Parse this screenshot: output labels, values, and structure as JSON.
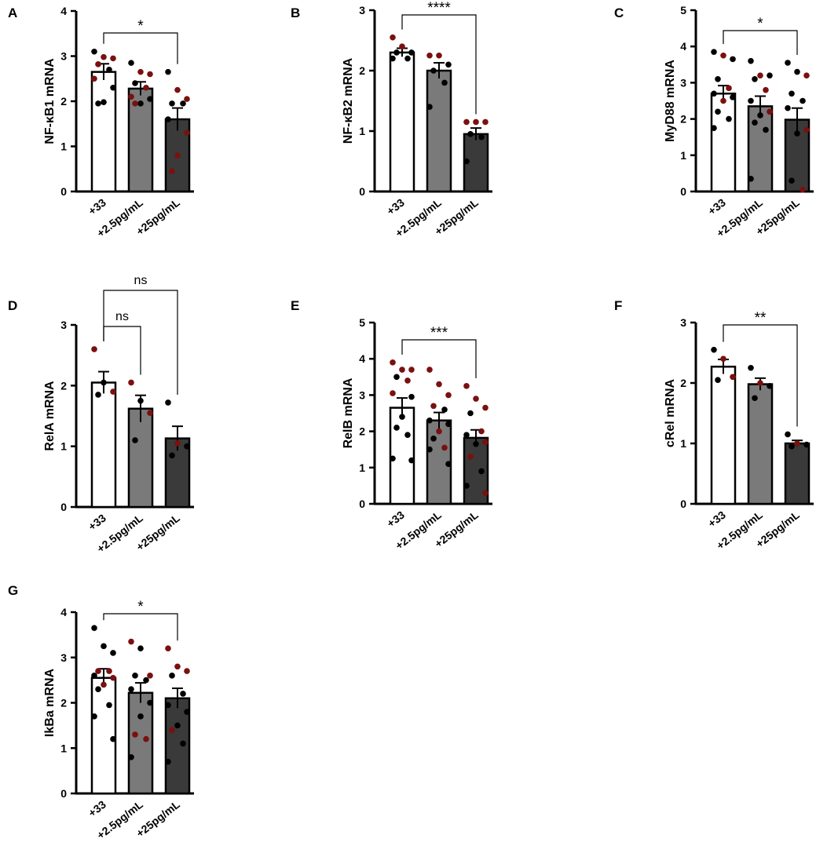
{
  "figure": {
    "colors": {
      "bar_fills": [
        "#ffffff",
        "#7a7a7a",
        "#3a3a3a"
      ],
      "dot_black": "#000000",
      "dot_red": "#7a1010",
      "axis": "#000000"
    }
  },
  "chart_data": [
    {
      "panel": "A",
      "type": "bar",
      "ylabel": "NF-κB1 mRNA",
      "ylim": [
        0,
        4
      ],
      "yticks": [
        0,
        1,
        2,
        3,
        4
      ],
      "categories": [
        "+33",
        "+2.5pg/mL",
        "+25pg/mL"
      ],
      "values": [
        2.65,
        2.28,
        1.6
      ],
      "errors": [
        0.18,
        0.15,
        0.25
      ],
      "points": [
        [
          {
            "v": 3.1,
            "c": "k"
          },
          {
            "v": 2.98,
            "c": "r"
          },
          {
            "v": 2.95,
            "c": "r"
          },
          {
            "v": 2.82,
            "c": "r"
          },
          {
            "v": 2.7,
            "c": "k"
          },
          {
            "v": 2.5,
            "c": "r"
          },
          {
            "v": 2.3,
            "c": "k"
          },
          {
            "v": 1.98,
            "c": "k"
          },
          {
            "v": 1.95,
            "c": "k"
          }
        ],
        [
          {
            "v": 2.85,
            "c": "k"
          },
          {
            "v": 2.65,
            "c": "r"
          },
          {
            "v": 2.6,
            "c": "r"
          },
          {
            "v": 2.4,
            "c": "k"
          },
          {
            "v": 2.3,
            "c": "r"
          },
          {
            "v": 2.1,
            "c": "r"
          },
          {
            "v": 2.05,
            "c": "k"
          },
          {
            "v": 1.95,
            "c": "k"
          },
          {
            "v": 1.95,
            "c": "r"
          }
        ],
        [
          {
            "v": 2.65,
            "c": "k"
          },
          {
            "v": 2.25,
            "c": "r"
          },
          {
            "v": 2.05,
            "c": "r"
          },
          {
            "v": 1.95,
            "c": "k"
          },
          {
            "v": 1.95,
            "c": "k"
          },
          {
            "v": 1.6,
            "c": "k"
          },
          {
            "v": 1.3,
            "c": "r"
          },
          {
            "v": 0.8,
            "c": "r"
          },
          {
            "v": 0.45,
            "c": "r"
          }
        ]
      ],
      "significance": [
        {
          "from": 0,
          "to": 2,
          "label": "*"
        }
      ]
    },
    {
      "panel": "B",
      "type": "bar",
      "ylabel": "NF-κB2 mRNA",
      "ylim": [
        0,
        3
      ],
      "yticks": [
        0,
        1,
        2,
        3
      ],
      "categories": [
        "+33",
        "+2.5pg/mL",
        "+25pg/mL"
      ],
      "values": [
        2.3,
        2.0,
        0.95
      ],
      "errors": [
        0.07,
        0.13,
        0.1
      ],
      "points": [
        [
          {
            "v": 2.55,
            "c": "r"
          },
          {
            "v": 2.4,
            "c": "r"
          },
          {
            "v": 2.3,
            "c": "k"
          },
          {
            "v": 2.3,
            "c": "k"
          },
          {
            "v": 2.2,
            "c": "k"
          },
          {
            "v": 2.2,
            "c": "k"
          }
        ],
        [
          {
            "v": 2.25,
            "c": "r"
          },
          {
            "v": 2.25,
            "c": "r"
          },
          {
            "v": 2.1,
            "c": "k"
          },
          {
            "v": 2.0,
            "c": "k"
          },
          {
            "v": 1.8,
            "c": "k"
          },
          {
            "v": 1.4,
            "c": "k"
          }
        ],
        [
          {
            "v": 1.15,
            "c": "r"
          },
          {
            "v": 1.15,
            "c": "r"
          },
          {
            "v": 1.15,
            "c": "r"
          },
          {
            "v": 0.95,
            "c": "k"
          },
          {
            "v": 0.9,
            "c": "k"
          },
          {
            "v": 0.5,
            "c": "k"
          }
        ]
      ],
      "significance": [
        {
          "from": 0,
          "to": 2,
          "label": "****"
        }
      ]
    },
    {
      "panel": "C",
      "type": "bar",
      "ylabel": "MyD88 mRNA",
      "ylim": [
        0,
        5
      ],
      "yticks": [
        0,
        1,
        2,
        3,
        4,
        5
      ],
      "categories": [
        "+33",
        "+2.5pg/mL",
        "+25pg/mL"
      ],
      "values": [
        2.7,
        2.35,
        1.98
      ],
      "errors": [
        0.22,
        0.28,
        0.32
      ],
      "points": [
        [
          {
            "v": 3.85,
            "c": "k"
          },
          {
            "v": 3.75,
            "c": "r"
          },
          {
            "v": 3.65,
            "c": "k"
          },
          {
            "v": 3.1,
            "c": "k"
          },
          {
            "v": 2.85,
            "c": "r"
          },
          {
            "v": 2.7,
            "c": "k"
          },
          {
            "v": 2.6,
            "c": "k"
          },
          {
            "v": 2.5,
            "c": "r"
          },
          {
            "v": 2.2,
            "c": "k"
          },
          {
            "v": 2.0,
            "c": "k"
          },
          {
            "v": 1.75,
            "c": "k"
          }
        ],
        [
          {
            "v": 3.6,
            "c": "k"
          },
          {
            "v": 3.2,
            "c": "r"
          },
          {
            "v": 3.2,
            "c": "k"
          },
          {
            "v": 3.1,
            "c": "k"
          },
          {
            "v": 2.8,
            "c": "r"
          },
          {
            "v": 2.5,
            "c": "k"
          },
          {
            "v": 2.2,
            "c": "r"
          },
          {
            "v": 2.1,
            "c": "k"
          },
          {
            "v": 1.9,
            "c": "k"
          },
          {
            "v": 1.7,
            "c": "k"
          },
          {
            "v": 0.35,
            "c": "k"
          }
        ],
        [
          {
            "v": 3.55,
            "c": "k"
          },
          {
            "v": 3.3,
            "c": "k"
          },
          {
            "v": 3.2,
            "c": "r"
          },
          {
            "v": 2.7,
            "c": "k"
          },
          {
            "v": 2.5,
            "c": "k"
          },
          {
            "v": 2.3,
            "c": "k"
          },
          {
            "v": 1.7,
            "c": "r"
          },
          {
            "v": 1.6,
            "c": "k"
          },
          {
            "v": 0.3,
            "c": "k"
          },
          {
            "v": 0.05,
            "c": "r"
          }
        ]
      ],
      "significance": [
        {
          "from": 0,
          "to": 2,
          "label": "*"
        }
      ]
    },
    {
      "panel": "D",
      "type": "bar",
      "ylabel": "RelA mRNA",
      "ylim": [
        0,
        3
      ],
      "yticks": [
        0,
        1,
        2,
        3
      ],
      "categories": [
        "+33",
        "+2.5pg/mL",
        "+25pg/mL"
      ],
      "values": [
        2.05,
        1.62,
        1.13
      ],
      "errors": [
        0.18,
        0.22,
        0.2
      ],
      "points": [
        [
          {
            "v": 2.6,
            "c": "r"
          },
          {
            "v": 2.05,
            "c": "k"
          },
          {
            "v": 1.9,
            "c": "r"
          },
          {
            "v": 1.85,
            "c": "k"
          }
        ],
        [
          {
            "v": 2.05,
            "c": "r"
          },
          {
            "v": 1.75,
            "c": "k"
          },
          {
            "v": 1.55,
            "c": "r"
          },
          {
            "v": 1.1,
            "c": "k"
          }
        ],
        [
          {
            "v": 1.72,
            "c": "k"
          },
          {
            "v": 1.05,
            "c": "r"
          },
          {
            "v": 1.0,
            "c": "k"
          },
          {
            "v": 0.85,
            "c": "k"
          }
        ]
      ],
      "significance": [
        {
          "from": 0,
          "to": 1,
          "label": "ns"
        },
        {
          "from": 0,
          "to": 2,
          "label": "ns"
        }
      ]
    },
    {
      "panel": "E",
      "type": "bar",
      "ylabel": "RelB mRNA",
      "ylim": [
        0,
        5
      ],
      "yticks": [
        0,
        1,
        2,
        3,
        4,
        5
      ],
      "categories": [
        "+33",
        "+2.5pg/mL",
        "+25pg/mL"
      ],
      "values": [
        2.65,
        2.3,
        1.82
      ],
      "errors": [
        0.27,
        0.22,
        0.22
      ],
      "points": [
        [
          {
            "v": 3.9,
            "c": "r"
          },
          {
            "v": 3.7,
            "c": "r"
          },
          {
            "v": 3.7,
            "c": "r"
          },
          {
            "v": 3.5,
            "c": "k"
          },
          {
            "v": 3.4,
            "c": "r"
          },
          {
            "v": 3.05,
            "c": "r"
          },
          {
            "v": 2.95,
            "c": "k"
          },
          {
            "v": 2.4,
            "c": "k"
          },
          {
            "v": 2.1,
            "c": "k"
          },
          {
            "v": 1.9,
            "c": "k"
          },
          {
            "v": 1.25,
            "c": "k"
          },
          {
            "v": 1.2,
            "c": "k"
          }
        ],
        [
          {
            "v": 3.7,
            "c": "r"
          },
          {
            "v": 3.3,
            "c": "r"
          },
          {
            "v": 3.0,
            "c": "r"
          },
          {
            "v": 2.7,
            "c": "r"
          },
          {
            "v": 2.6,
            "c": "k"
          },
          {
            "v": 2.3,
            "c": "k"
          },
          {
            "v": 2.2,
            "c": "k"
          },
          {
            "v": 2.0,
            "c": "r"
          },
          {
            "v": 1.8,
            "c": "k"
          },
          {
            "v": 1.55,
            "c": "r"
          },
          {
            "v": 1.5,
            "c": "k"
          },
          {
            "v": 1.1,
            "c": "k"
          }
        ],
        [
          {
            "v": 3.25,
            "c": "r"
          },
          {
            "v": 2.9,
            "c": "r"
          },
          {
            "v": 2.65,
            "c": "r"
          },
          {
            "v": 2.5,
            "c": "k"
          },
          {
            "v": 2.0,
            "c": "r"
          },
          {
            "v": 1.9,
            "c": "k"
          },
          {
            "v": 1.7,
            "c": "r"
          },
          {
            "v": 1.65,
            "c": "k"
          },
          {
            "v": 1.3,
            "c": "r"
          },
          {
            "v": 0.9,
            "c": "k"
          },
          {
            "v": 0.5,
            "c": "k"
          },
          {
            "v": 0.3,
            "c": "r"
          }
        ]
      ],
      "significance": [
        {
          "from": 0,
          "to": 2,
          "label": "***"
        }
      ]
    },
    {
      "panel": "F",
      "type": "bar",
      "ylabel": "cRel mRNA",
      "ylim": [
        0,
        3
      ],
      "yticks": [
        0,
        1,
        2,
        3
      ],
      "categories": [
        "+33",
        "+2.5pg/mL",
        "+25pg/mL"
      ],
      "values": [
        2.27,
        1.98,
        1.0
      ],
      "errors": [
        0.12,
        0.1,
        0.05
      ],
      "points": [
        [
          {
            "v": 2.55,
            "c": "k"
          },
          {
            "v": 2.4,
            "c": "r"
          },
          {
            "v": 2.1,
            "c": "r"
          },
          {
            "v": 2.05,
            "c": "k"
          }
        ],
        [
          {
            "v": 2.25,
            "c": "k"
          },
          {
            "v": 2.0,
            "c": "r"
          },
          {
            "v": 1.95,
            "c": "k"
          },
          {
            "v": 1.75,
            "c": "k"
          }
        ],
        [
          {
            "v": 1.15,
            "c": "k"
          },
          {
            "v": 1.0,
            "c": "r"
          },
          {
            "v": 0.98,
            "c": "k"
          },
          {
            "v": 0.95,
            "c": "k"
          }
        ]
      ],
      "significance": [
        {
          "from": 0,
          "to": 2,
          "label": "**"
        }
      ]
    },
    {
      "panel": "G",
      "type": "bar",
      "ylabel": "IkBa mRNA",
      "ylim": [
        0,
        4
      ],
      "yticks": [
        0,
        1,
        2,
        3,
        4
      ],
      "categories": [
        "+33",
        "+2.5pg/mL",
        "+25pg/mL"
      ],
      "values": [
        2.55,
        2.22,
        2.1
      ],
      "errors": [
        0.2,
        0.22,
        0.22
      ],
      "points": [
        [
          {
            "v": 3.65,
            "c": "k"
          },
          {
            "v": 3.25,
            "c": "k"
          },
          {
            "v": 3.1,
            "c": "k"
          },
          {
            "v": 2.7,
            "c": "r"
          },
          {
            "v": 2.7,
            "c": "r"
          },
          {
            "v": 2.6,
            "c": "k"
          },
          {
            "v": 2.55,
            "c": "r"
          },
          {
            "v": 2.4,
            "c": "r"
          },
          {
            "v": 2.3,
            "c": "k"
          },
          {
            "v": 1.95,
            "c": "k"
          },
          {
            "v": 1.7,
            "c": "k"
          },
          {
            "v": 1.2,
            "c": "k"
          }
        ],
        [
          {
            "v": 3.35,
            "c": "r"
          },
          {
            "v": 3.2,
            "c": "k"
          },
          {
            "v": 2.6,
            "c": "r"
          },
          {
            "v": 2.6,
            "c": "k"
          },
          {
            "v": 2.5,
            "c": "k"
          },
          {
            "v": 2.3,
            "c": "k"
          },
          {
            "v": 2.0,
            "c": "k"
          },
          {
            "v": 1.7,
            "c": "k"
          },
          {
            "v": 1.3,
            "c": "r"
          },
          {
            "v": 1.2,
            "c": "r"
          },
          {
            "v": 0.8,
            "c": "k"
          }
        ],
        [
          {
            "v": 3.2,
            "c": "r"
          },
          {
            "v": 2.8,
            "c": "r"
          },
          {
            "v": 2.7,
            "c": "r"
          },
          {
            "v": 2.6,
            "c": "k"
          },
          {
            "v": 2.2,
            "c": "k"
          },
          {
            "v": 1.95,
            "c": "k"
          },
          {
            "v": 1.8,
            "c": "k"
          },
          {
            "v": 1.5,
            "c": "k"
          },
          {
            "v": 1.4,
            "c": "r"
          },
          {
            "v": 1.1,
            "c": "k"
          },
          {
            "v": 0.7,
            "c": "k"
          }
        ]
      ],
      "significance": [
        {
          "from": 0,
          "to": 2,
          "label": "*"
        }
      ]
    }
  ]
}
